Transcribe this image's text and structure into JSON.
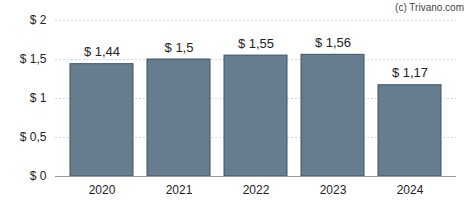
{
  "chart_data": {
    "type": "bar",
    "annotation": "(c) Trivano.com",
    "categories": [
      "2020",
      "2021",
      "2022",
      "2023",
      "2024"
    ],
    "values": [
      1.44,
      1.5,
      1.55,
      1.56,
      1.17
    ],
    "value_labels": [
      "$ 1,44",
      "$ 1,5",
      "$ 1,55",
      "$ 1,56",
      "$ 1,17"
    ],
    "color": "#667d90",
    "ylim": [
      0,
      2
    ],
    "yticks": [
      {
        "value": 0,
        "label": "$ 0"
      },
      {
        "value": 0.5,
        "label": "$ 0,5"
      },
      {
        "value": 1,
        "label": "$ 1"
      },
      {
        "value": 1.5,
        "label": "$ 1,5"
      },
      {
        "value": 2,
        "label": "$ 2"
      }
    ],
    "grid": true,
    "data_labels": true
  }
}
